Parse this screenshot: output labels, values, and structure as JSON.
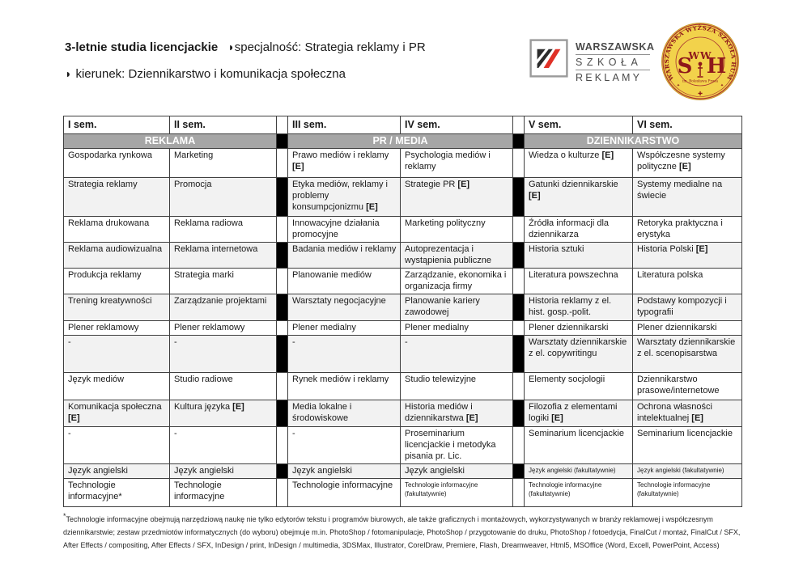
{
  "header": {
    "title_bold": "3-letnie studia licencjackie",
    "bullet": "◗",
    "specialization": "specjalność: Strategia reklamy i PR",
    "field": "kierunek: Dziennikarstwo i komunikacja społeczna"
  },
  "logos": {
    "wsr": {
      "line1": "WARSZAWSKA",
      "line2": "SZKOŁA",
      "line3": "REKLAMY"
    },
    "wwsh": {
      "ring_text": "WARSZAWSKA WYŻSZA SZKOŁA HUMANISTYCZNA",
      "monogram_left": "S",
      "monogram_top": "WW",
      "monogram_right": "H",
      "name_text": "im. Bolesława Prusa",
      "cross": "✚"
    }
  },
  "colors": {
    "band_gray": "#a6a6a6",
    "row_shade": "#f2f2f2",
    "spacer_black": "#000000",
    "logo_red": "#e03127",
    "seal_gold": "#f2d24b",
    "seal_red": "#8e181b"
  },
  "table": {
    "sem_headers": [
      "I sem.",
      "II sem.",
      "III sem.",
      "IV sem.",
      "V sem.",
      "VI sem."
    ],
    "groups": [
      {
        "label": "REKLAMA"
      },
      {
        "label": "PR / MEDIA"
      },
      {
        "label": "DZIENNIKARSTWO"
      }
    ],
    "rows": [
      {
        "shaded": false,
        "cells": [
          "Gospodarka rynkowa",
          "Marketing",
          "Prawo mediów i reklamy [E]",
          "Psychologia mediów i reklamy",
          "Wiedza o kulturze [E]",
          "Współczesne systemy polityczne [E]"
        ]
      },
      {
        "shaded": true,
        "cells": [
          "Strategia reklamy",
          "Promocja",
          "Etyka mediów, reklamy i problemy konsumpcjonizmu [E]",
          "Strategie PR [E]",
          "Gatunki dziennikarskie [E]",
          "Systemy medialne na świecie"
        ]
      },
      {
        "shaded": false,
        "cells": [
          "Reklama drukowana",
          "Reklama radiowa",
          "Innowacyjne działania promocyjne",
          "Marketing polityczny",
          "Źródła informacji dla dziennikarza",
          "Retoryka praktyczna i erystyka"
        ]
      },
      {
        "shaded": true,
        "cells": [
          "Reklama audiowizualna",
          "Reklama internetowa",
          "Badania mediów i reklamy",
          "Autoprezentacja i wystąpienia publiczne",
          "Historia sztuki",
          "Historia Polski [E]"
        ]
      },
      {
        "shaded": false,
        "cells": [
          "Produkcja reklamy",
          "Strategia marki",
          "Planowanie mediów",
          "Zarządzanie, ekonomika i organizacja firmy",
          "Literatura powszechna",
          "Literatura polska"
        ]
      },
      {
        "shaded": true,
        "cells": [
          "Trening kreatywności",
          "Zarządzanie projektami",
          "Warsztaty negocjacyjne",
          "Planowanie kariery zawodowej",
          "Historia reklamy z el. hist. gosp.-polit.",
          "Podstawy kompozycji i typografii"
        ]
      },
      {
        "shaded": false,
        "cells": [
          "Plener reklamowy",
          "Plener reklamowy",
          "Plener medialny",
          "Plener medialny",
          "Plener dziennikarski",
          "Plener dziennikarski"
        ]
      },
      {
        "shaded": true,
        "cells": [
          "-",
          "-",
          "-",
          "-",
          "Warsztaty dziennikarskie z el. copywritingu",
          "Warsztaty dziennikarskie z el. scenopisarstwa"
        ]
      },
      {
        "shaded": false,
        "cells": [
          "Język mediów",
          "Studio radiowe",
          "Rynek mediów i reklamy",
          "Studio telewizyjne",
          "Elementy socjologii",
          "Dziennikarstwo prasowe/internetowe"
        ]
      },
      {
        "shaded": true,
        "cells": [
          "Komunikacja społeczna [E]",
          "Kultura języka [E]",
          "Media lokalne i środowiskowe",
          "Historia mediów i dziennikarstwa [E]",
          "Filozofia z elementami logiki [E]",
          "Ochrona własności intelektualnej [E]"
        ]
      },
      {
        "shaded": false,
        "cells": [
          "-",
          "-",
          "-",
          "Proseminarium licencjackie i metodyka pisania pr. Lic.",
          "Seminarium licencjackie",
          "Seminarium licencjackie"
        ]
      },
      {
        "shaded": true,
        "cells": [
          "Język angielski",
          "Język angielski",
          "Język angielski",
          "Język angielski",
          {
            "t": "Język angielski (fakultatywnie)",
            "small": true
          },
          {
            "t": "Język angielski (fakultatywnie)",
            "small": true
          }
        ]
      },
      {
        "shaded": false,
        "cells": [
          "Technologie informacyjne*",
          "Technologie informacyjne",
          "Technologie informacyjne",
          {
            "t": "Technologie informacyjne (fakultatywnie)",
            "small": true
          },
          {
            "t": "Technologie informacyjne (fakultatywnie)",
            "small": true
          },
          {
            "t": "Technologie informacyjne (fakultatywnie)",
            "small": true
          }
        ]
      }
    ]
  },
  "footnote": {
    "star": "*",
    "lines": [
      "Technologie informacyjne obejmują narzędziową naukę nie tylko edytorów tekstu i programów biurowych, ale także graficznych i montażowych, wykorzystywanych w branży reklamowej i współczesnym",
      "dziennikarstwie; zestaw przedmiotów informatycznych (do wyboru) obejmuje m.in.  PhotoShop / fotomanipulacje, PhotoShop / przygotowanie do druku, PhotoShop / fotoedycja, FinalCut / montaż, FinalCut / SFX,",
      "After Effects / compositing, After Effects / SFX, InDesign / print, InDesign / multimedia, 3DSMax, Illustrator, CorelDraw, Premiere, Flash, Dreamweaver, Html5, MSOffice (Word, Excell, PowerPoint, Access)"
    ]
  }
}
